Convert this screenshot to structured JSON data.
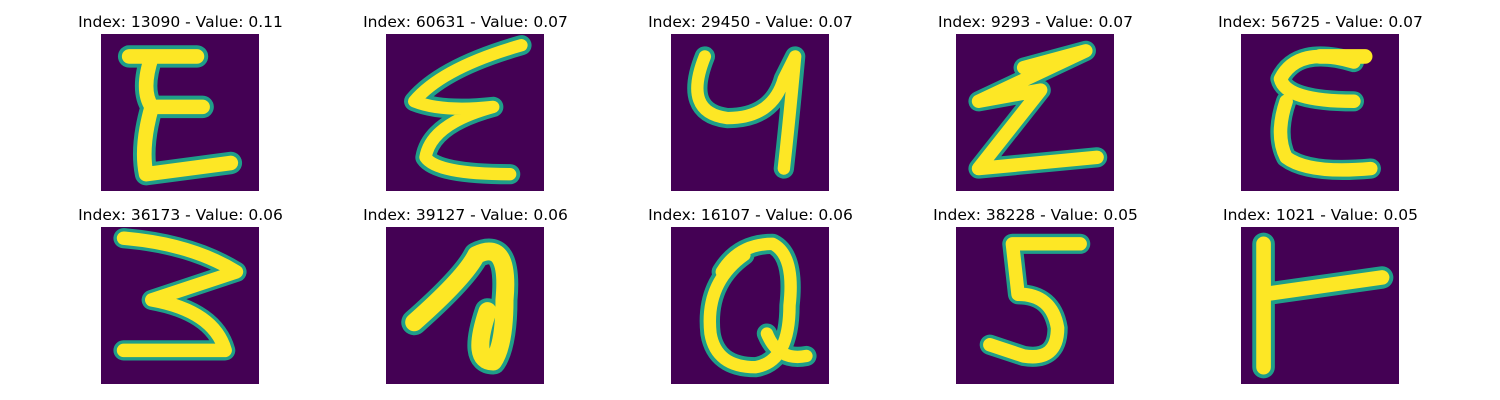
{
  "figure": {
    "panels": [
      {
        "title": "Index: 13090 - Value: 0.11",
        "glyph": "E",
        "index": 13090,
        "value": 0.11
      },
      {
        "title": "Index: 60631 - Value: 0.07",
        "glyph": "E-slanted",
        "index": 60631,
        "value": 0.07
      },
      {
        "title": "Index: 29450 - Value: 0.07",
        "glyph": "y",
        "index": 29450,
        "value": 0.07
      },
      {
        "title": "Index: 9293 - Value: 0.07",
        "glyph": "Z",
        "index": 9293,
        "value": 0.07
      },
      {
        "title": "Index: 56725 - Value: 0.07",
        "glyph": "E",
        "index": 56725,
        "value": 0.07
      },
      {
        "title": "Index: 36173 - Value: 0.06",
        "glyph": "3",
        "index": 36173,
        "value": 0.06
      },
      {
        "title": "Index: 39127 - Value: 0.06",
        "glyph": "a",
        "index": 39127,
        "value": 0.06
      },
      {
        "title": "Index: 16107 - Value: 0.06",
        "glyph": "Q",
        "index": 16107,
        "value": 0.06
      },
      {
        "title": "Index: 38228 - Value: 0.05",
        "glyph": "5",
        "index": 38228,
        "value": 0.05
      },
      {
        "title": "Index: 1021 - Value: 0.05",
        "glyph": "T-rotated",
        "index": 1021,
        "value": 0.05
      }
    ],
    "colors": {
      "background": "#440154",
      "stroke_core": "#fde725",
      "stroke_edge": "#1f9e89"
    }
  }
}
